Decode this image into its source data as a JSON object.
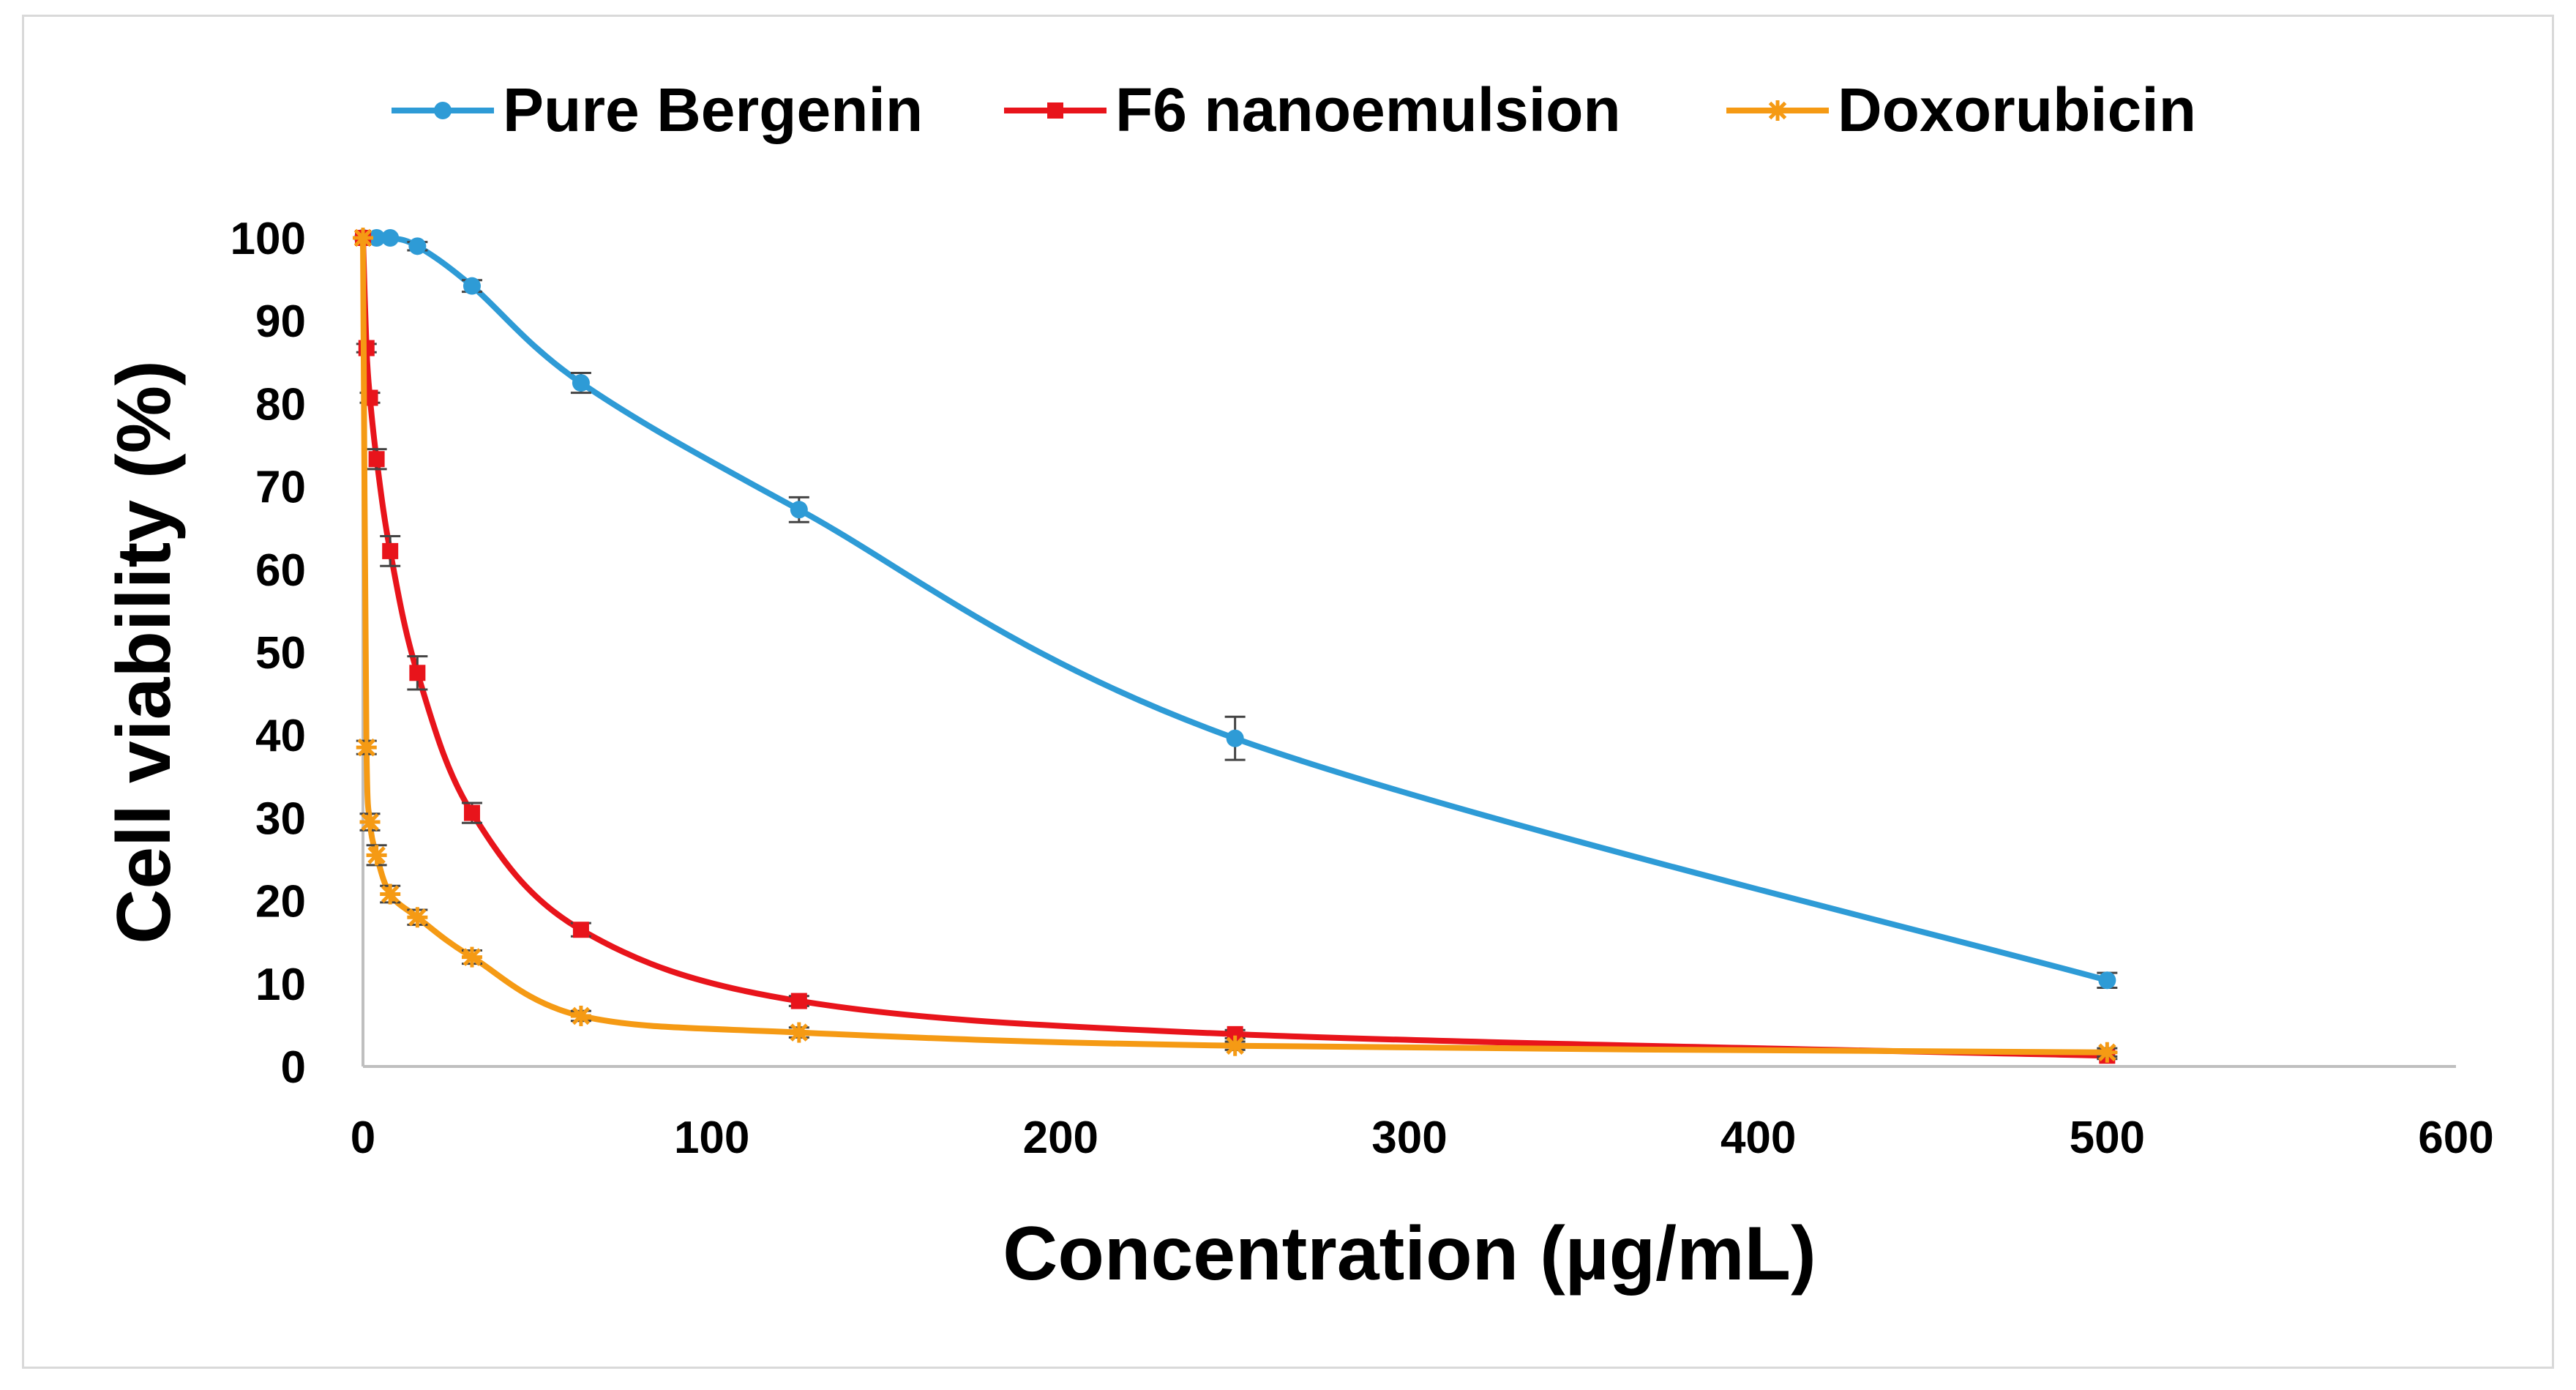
{
  "chart_data": {
    "type": "line",
    "title": "",
    "xlabel": "Concentration (µg/mL)",
    "ylabel": "Cell viability (%)",
    "xlim": [
      0,
      600
    ],
    "ylim": [
      0,
      100
    ],
    "xticks": [
      0,
      100,
      200,
      300,
      400,
      500,
      600
    ],
    "yticks": [
      0,
      10,
      20,
      30,
      40,
      50,
      60,
      70,
      80,
      90,
      100
    ],
    "grid": false,
    "legend_position": "top",
    "series": [
      {
        "name": "Pure Bergenin",
        "color": "#2E9BD6",
        "marker": "circle",
        "x": [
          0,
          3.9,
          7.8,
          15.6,
          31.25,
          62.5,
          125,
          250,
          500
        ],
        "y": [
          100,
          100,
          100,
          99,
          94.2,
          82.5,
          67.2,
          39.6,
          10.4
        ],
        "err": [
          0,
          0,
          0,
          0.5,
          0.7,
          1.2,
          1.5,
          2.6,
          0.9
        ]
      },
      {
        "name": "F6 nanoemulsion",
        "color": "#E8141B",
        "marker": "square",
        "x": [
          0,
          1,
          2,
          3.9,
          7.8,
          15.6,
          31.25,
          62.5,
          125,
          250,
          500
        ],
        "y": [
          100,
          86.7,
          80.7,
          73.3,
          62.2,
          47.5,
          30.6,
          16.5,
          7.9,
          3.9,
          1.3
        ],
        "err": [
          0,
          0.5,
          0.6,
          1.2,
          1.8,
          2.0,
          1.2,
          0.8,
          0.6,
          0.5,
          0.4
        ]
      },
      {
        "name": "Doxorubicin",
        "color": "#F59A14",
        "marker": "star",
        "x": [
          0,
          1,
          2,
          3.9,
          7.8,
          15.6,
          31.25,
          62.5,
          125,
          250,
          500
        ],
        "y": [
          100,
          38.5,
          29.5,
          25.5,
          20.8,
          18.0,
          13.2,
          6.1,
          4.1,
          2.5,
          1.7
        ],
        "err": [
          0,
          0.8,
          1.0,
          1.2,
          1.0,
          0.9,
          0.8,
          0.6,
          0.6,
          0.5,
          0.5
        ]
      }
    ]
  }
}
